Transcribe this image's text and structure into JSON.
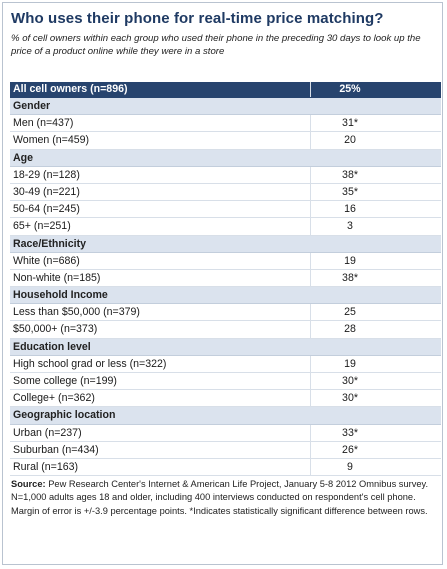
{
  "title": "Who uses their phone for real-time price matching?",
  "subtitle": "% of cell owners within each group who used their phone in the preceding 30 days to look up the price of a product online while they were in a store",
  "source_label": "Source:",
  "source_text": "Pew Research Center's Internet & American Life Project, January 5-8 2012 Omnibus survey. N=1,000 adults ages 18 and older, including 400 interviews conducted on respondent's cell phone. Margin of error is +/-3.9 percentage points. *Indicates statistically significant difference between rows.",
  "chart_data": {
    "type": "table",
    "header": {
      "label": "All cell owners (n=896)",
      "value": "25%"
    },
    "groups": [
      {
        "name": "Gender",
        "rows": [
          {
            "label": "Men (n=437)",
            "value": "31*"
          },
          {
            "label": "Women (n=459)",
            "value": "20"
          }
        ]
      },
      {
        "name": "Age",
        "rows": [
          {
            "label": "18-29 (n=128)",
            "value": "38*"
          },
          {
            "label": "30-49 (n=221)",
            "value": "35*"
          },
          {
            "label": "50-64 (n=245)",
            "value": "16"
          },
          {
            "label": "65+ (n=251)",
            "value": "3"
          }
        ]
      },
      {
        "name": "Race/Ethnicity",
        "rows": [
          {
            "label": "White (n=686)",
            "value": "19"
          },
          {
            "label": "Non-white (n=185)",
            "value": "38*"
          }
        ]
      },
      {
        "name": "Household Income",
        "rows": [
          {
            "label": "Less than $50,000 (n=379)",
            "value": "25"
          },
          {
            "label": "$50,000+ (n=373)",
            "value": "28"
          }
        ]
      },
      {
        "name": "Education level",
        "rows": [
          {
            "label": "High school grad or less (n=322)",
            "value": "19"
          },
          {
            "label": "Some college (n=199)",
            "value": "30*"
          },
          {
            "label": "College+ (n=362)",
            "value": "30*"
          }
        ]
      },
      {
        "name": "Geographic location",
        "rows": [
          {
            "label": "Urban (n=237)",
            "value": "33*"
          },
          {
            "label": "Suburban (n=434)",
            "value": "26*"
          },
          {
            "label": "Rural (n=163)",
            "value": "9"
          }
        ]
      }
    ]
  }
}
